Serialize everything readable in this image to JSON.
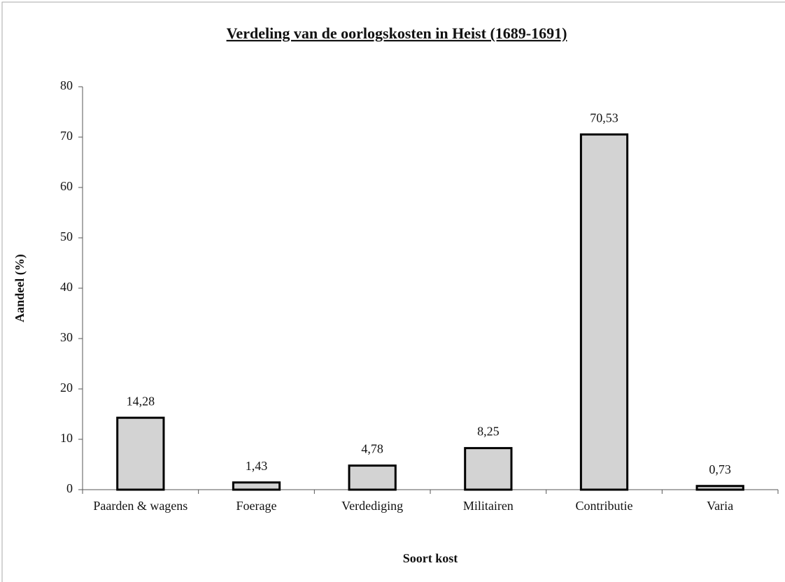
{
  "chart_data": {
    "type": "bar",
    "title": "Verdeling van de oorlogskosten in Heist (1689-1691)",
    "x_label": "Soort kost",
    "y_label": "Aandeel (%)",
    "categories": [
      "Paarden & wagens",
      "Foerage",
      "Verdediging",
      "Militairen",
      "Contributie",
      "Varia"
    ],
    "values": [
      14.28,
      1.43,
      4.78,
      8.25,
      70.53,
      0.73
    ],
    "value_labels": [
      "14,28",
      "1,43",
      "4,78",
      "8,25",
      "70,53",
      "0,73"
    ],
    "color": "#d3d3d3",
    "ylim": [
      0,
      80
    ],
    "yticks": [
      0,
      10,
      20,
      30,
      40,
      50,
      60,
      70,
      80
    ],
    "grid": false
  }
}
